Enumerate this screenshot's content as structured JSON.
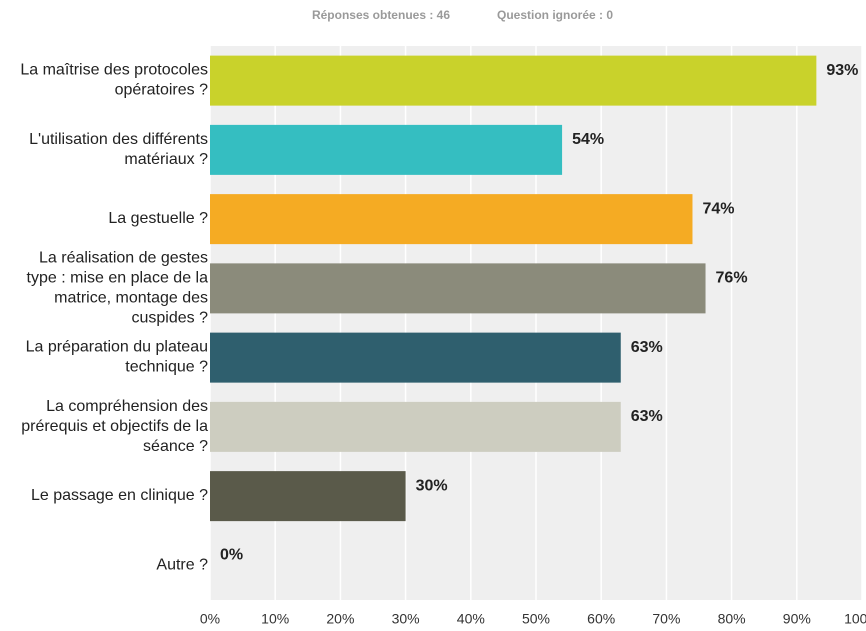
{
  "chart_data": {
    "type": "bar",
    "orientation": "horizontal",
    "annotations": [
      "Réponses obtenues : 46",
      "Question ignorée : 0"
    ],
    "categories": [
      "La maîtrise des protocoles opératoires ?",
      "L'utilisation des différents matériaux ?",
      "La gestuelle ?",
      "La réalisation de gestes type : mise en place de la matrice, montage des cuspides ?",
      "La préparation du plateau technique ?",
      "La compréhension des prérequis et objectifs de la séance ?",
      "Le passage en clinique ?",
      "Autre ?"
    ],
    "values": [
      93,
      54,
      74,
      76,
      63,
      63,
      30,
      0
    ],
    "value_labels": [
      "93%",
      "54%",
      "74%",
      "76%",
      "63%",
      "63%",
      "30%",
      "0%"
    ],
    "colors": [
      "#c9d22b",
      "#35bec1",
      "#f5ab23",
      "#8b8b7b",
      "#2f5f6e",
      "#cdcdc0",
      "#5a5a4a",
      "#9a9a9a"
    ],
    "xlim": [
      0,
      100
    ],
    "xticks": [
      {
        "value": 0,
        "label": "0%"
      },
      {
        "value": 10,
        "label": "10%"
      },
      {
        "value": 20,
        "label": "20%"
      },
      {
        "value": 30,
        "label": "30%"
      },
      {
        "value": 40,
        "label": "40%"
      },
      {
        "value": 50,
        "label": "50%"
      },
      {
        "value": 60,
        "label": "60%"
      },
      {
        "value": 70,
        "label": "70%"
      },
      {
        "value": 80,
        "label": "80%"
      },
      {
        "value": 90,
        "label": "90%"
      },
      {
        "value": 100,
        "label": "100%"
      }
    ],
    "grid": true
  }
}
